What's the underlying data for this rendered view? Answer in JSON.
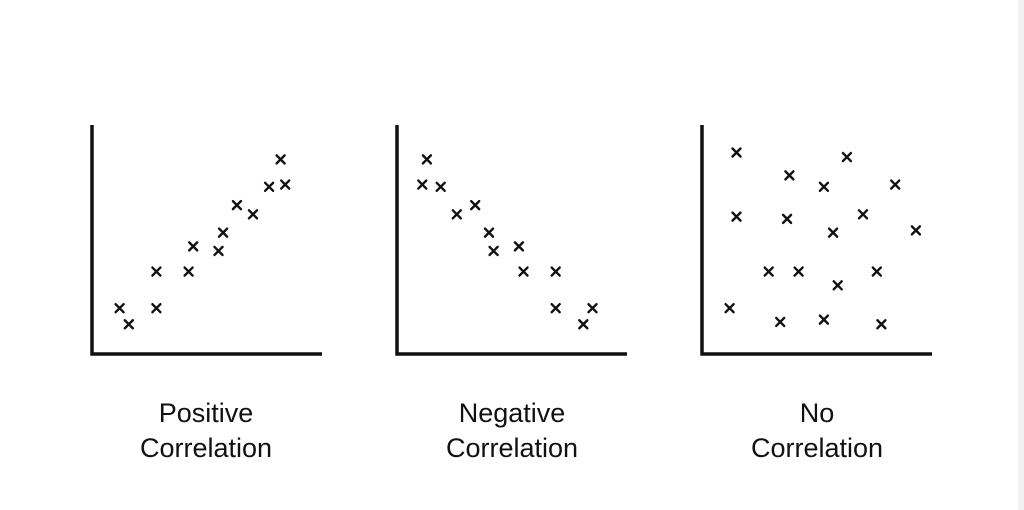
{
  "colors": {
    "background": "#ffffff",
    "ink": "#111111"
  },
  "chart_data": [
    {
      "type": "scatter",
      "title": "",
      "caption": [
        "Positive",
        "Correlation"
      ],
      "xlabel": "",
      "ylabel": "",
      "xlim": [
        0,
        100
      ],
      "ylim": [
        0,
        100
      ],
      "grid": false,
      "marker": "x",
      "points": [
        {
          "x": 12,
          "y": 20
        },
        {
          "x": 16,
          "y": 13
        },
        {
          "x": 28,
          "y": 20
        },
        {
          "x": 28,
          "y": 36
        },
        {
          "x": 42,
          "y": 36
        },
        {
          "x": 44,
          "y": 47
        },
        {
          "x": 55,
          "y": 45
        },
        {
          "x": 57,
          "y": 53
        },
        {
          "x": 63,
          "y": 65
        },
        {
          "x": 70,
          "y": 61
        },
        {
          "x": 77,
          "y": 73
        },
        {
          "x": 82,
          "y": 85
        },
        {
          "x": 84,
          "y": 74
        }
      ]
    },
    {
      "type": "scatter",
      "title": "",
      "caption": [
        "Negative",
        "Correlation"
      ],
      "xlabel": "",
      "ylabel": "",
      "xlim": [
        0,
        100
      ],
      "ylim": [
        0,
        100
      ],
      "grid": false,
      "marker": "x",
      "points": [
        {
          "x": 13,
          "y": 85
        },
        {
          "x": 11,
          "y": 74
        },
        {
          "x": 19,
          "y": 73
        },
        {
          "x": 26,
          "y": 61
        },
        {
          "x": 34,
          "y": 65
        },
        {
          "x": 40,
          "y": 53
        },
        {
          "x": 42,
          "y": 45
        },
        {
          "x": 53,
          "y": 47
        },
        {
          "x": 55,
          "y": 36
        },
        {
          "x": 69,
          "y": 36
        },
        {
          "x": 69,
          "y": 20
        },
        {
          "x": 81,
          "y": 13
        },
        {
          "x": 85,
          "y": 20
        }
      ]
    },
    {
      "type": "scatter",
      "title": "",
      "caption": [
        "No",
        "Correlation"
      ],
      "xlabel": "",
      "ylabel": "",
      "xlim": [
        0,
        100
      ],
      "ylim": [
        0,
        100
      ],
      "grid": false,
      "marker": "x",
      "points": [
        {
          "x": 15,
          "y": 88
        },
        {
          "x": 38,
          "y": 78
        },
        {
          "x": 53,
          "y": 73
        },
        {
          "x": 63,
          "y": 86
        },
        {
          "x": 84,
          "y": 74
        },
        {
          "x": 15,
          "y": 60
        },
        {
          "x": 37,
          "y": 59
        },
        {
          "x": 57,
          "y": 53
        },
        {
          "x": 70,
          "y": 61
        },
        {
          "x": 93,
          "y": 54
        },
        {
          "x": 29,
          "y": 36
        },
        {
          "x": 42,
          "y": 36
        },
        {
          "x": 59,
          "y": 30
        },
        {
          "x": 76,
          "y": 36
        },
        {
          "x": 12,
          "y": 20
        },
        {
          "x": 34,
          "y": 14
        },
        {
          "x": 53,
          "y": 15
        },
        {
          "x": 78,
          "y": 13
        }
      ]
    }
  ]
}
